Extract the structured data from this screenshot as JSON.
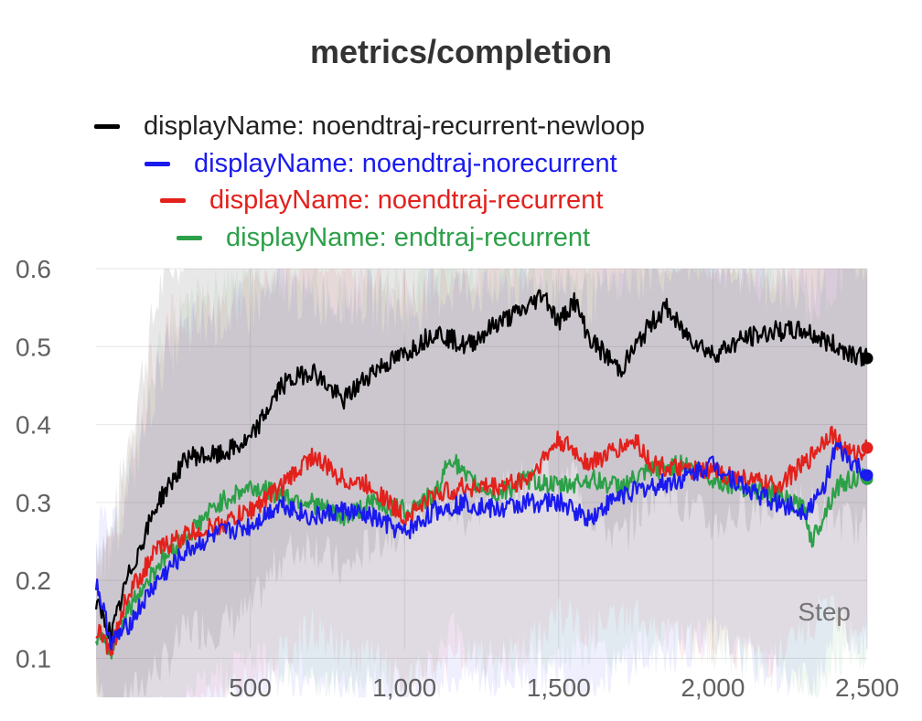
{
  "chart_data": {
    "type": "line",
    "title": "metrics/completion",
    "xlabel": "Step",
    "ylabel": "",
    "xlim": [
      0,
      2500
    ],
    "ylim": [
      0.07,
      0.6
    ],
    "x_ticks": [
      500,
      1000,
      1500,
      2000,
      2500
    ],
    "x_tick_labels": [
      "500",
      "1,000",
      "1,500",
      "2,000",
      "2,500"
    ],
    "y_ticks": [
      0.1,
      0.2,
      0.3,
      0.4,
      0.5,
      0.6
    ],
    "y_tick_labels": [
      "0.1",
      "0.2",
      "0.3",
      "0.4",
      "0.5",
      "0.6"
    ],
    "grid": true,
    "legend_position": "top",
    "series": [
      {
        "name": "displayName: noendtraj-recurrent-newloop",
        "color": "#000000",
        "x": [
          0,
          50,
          100,
          200,
          300,
          400,
          500,
          600,
          700,
          800,
          900,
          1000,
          1100,
          1200,
          1300,
          1400,
          1450,
          1500,
          1550,
          1600,
          1700,
          1750,
          1800,
          1850,
          1900,
          2000,
          2100,
          2200,
          2300,
          2400,
          2500
        ],
        "y": [
          0.17,
          0.13,
          0.2,
          0.3,
          0.36,
          0.36,
          0.38,
          0.45,
          0.47,
          0.43,
          0.47,
          0.49,
          0.52,
          0.5,
          0.53,
          0.55,
          0.57,
          0.53,
          0.56,
          0.51,
          0.47,
          0.5,
          0.53,
          0.55,
          0.52,
          0.49,
          0.51,
          0.52,
          0.52,
          0.5,
          0.485
        ]
      },
      {
        "name": "displayName: noendtraj-norecurrent",
        "color": "#1a1aef",
        "x": [
          0,
          50,
          100,
          200,
          300,
          400,
          500,
          600,
          700,
          800,
          900,
          1000,
          1100,
          1200,
          1300,
          1400,
          1500,
          1600,
          1700,
          1800,
          1900,
          2000,
          2100,
          2200,
          2300,
          2350,
          2400,
          2450,
          2500
        ],
        "y": [
          0.2,
          0.12,
          0.14,
          0.2,
          0.24,
          0.26,
          0.27,
          0.3,
          0.28,
          0.29,
          0.28,
          0.26,
          0.29,
          0.3,
          0.29,
          0.3,
          0.3,
          0.28,
          0.31,
          0.32,
          0.33,
          0.35,
          0.32,
          0.3,
          0.29,
          0.31,
          0.37,
          0.35,
          0.335
        ]
      },
      {
        "name": "displayName: noendtraj-recurrent",
        "color": "#e3211c",
        "x": [
          0,
          50,
          100,
          200,
          300,
          400,
          500,
          600,
          700,
          800,
          900,
          1000,
          1100,
          1200,
          1300,
          1400,
          1500,
          1600,
          1700,
          1750,
          1800,
          1900,
          2000,
          2100,
          2200,
          2300,
          2380,
          2450,
          2500
        ],
        "y": [
          0.14,
          0.11,
          0.18,
          0.24,
          0.26,
          0.27,
          0.29,
          0.32,
          0.36,
          0.33,
          0.32,
          0.28,
          0.31,
          0.32,
          0.32,
          0.33,
          0.38,
          0.35,
          0.37,
          0.38,
          0.35,
          0.34,
          0.34,
          0.33,
          0.32,
          0.35,
          0.39,
          0.36,
          0.37
        ]
      },
      {
        "name": "displayName: endtraj-recurrent",
        "color": "#2ca048",
        "x": [
          0,
          50,
          100,
          200,
          300,
          400,
          500,
          600,
          700,
          800,
          900,
          1000,
          1100,
          1150,
          1200,
          1300,
          1400,
          1500,
          1600,
          1700,
          1800,
          1900,
          2000,
          2100,
          2200,
          2300,
          2320,
          2400,
          2450,
          2500
        ],
        "y": [
          0.13,
          0.11,
          0.16,
          0.22,
          0.26,
          0.3,
          0.32,
          0.31,
          0.3,
          0.28,
          0.3,
          0.29,
          0.31,
          0.36,
          0.33,
          0.31,
          0.33,
          0.32,
          0.33,
          0.32,
          0.34,
          0.35,
          0.33,
          0.32,
          0.31,
          0.29,
          0.25,
          0.32,
          0.33,
          0.33
        ]
      }
    ]
  }
}
